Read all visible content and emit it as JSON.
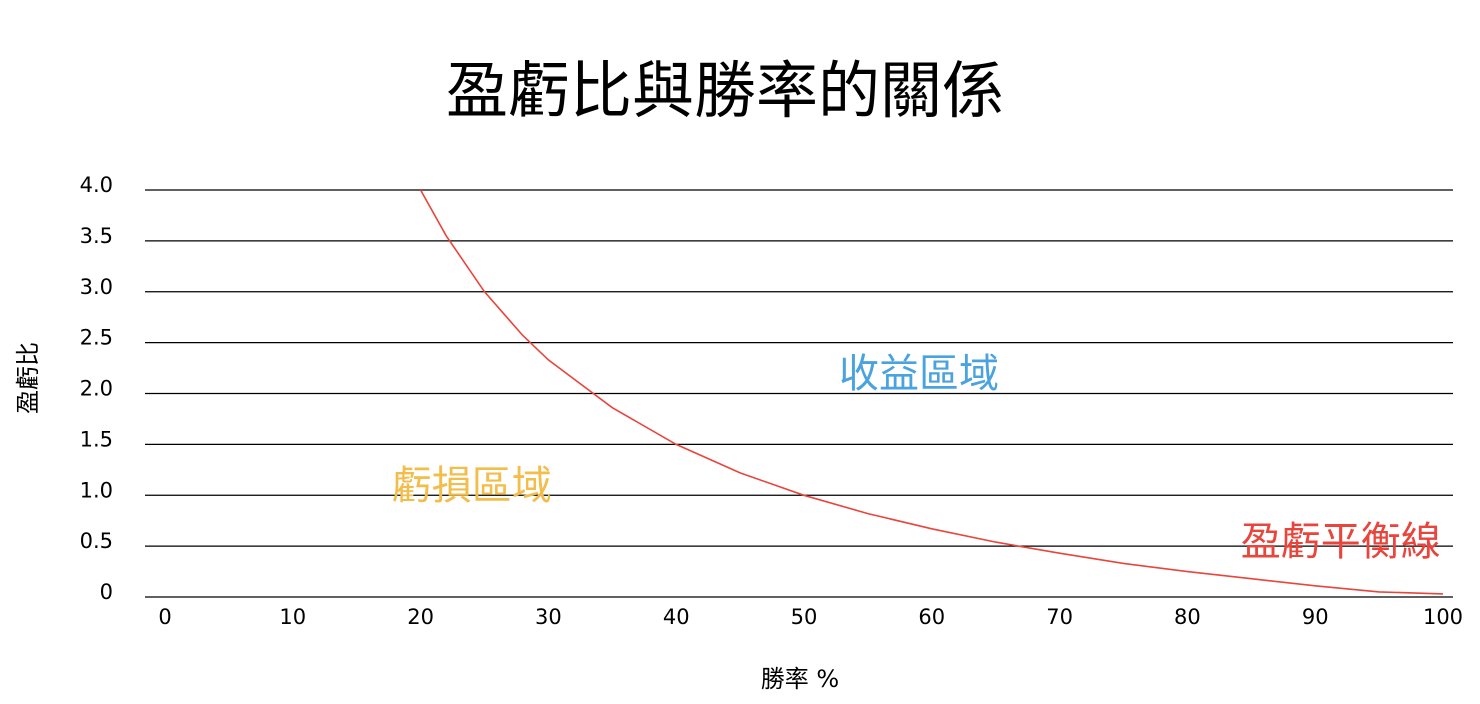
{
  "chart_data": {
    "type": "line",
    "title": "盈虧比與勝率的關係",
    "xlabel": "勝率 %",
    "ylabel": "盈虧比",
    "xlim": [
      0,
      100
    ],
    "ylim": [
      0,
      4
    ],
    "x_ticks": [
      "0",
      "10",
      "20",
      "30",
      "40",
      "50",
      "60",
      "70",
      "80",
      "90",
      "100"
    ],
    "y_ticks": [
      "0",
      "0.5",
      "1.0",
      "1.5",
      "2.0",
      "2.5",
      "3.0",
      "3.5",
      "4.0"
    ],
    "grid": true,
    "series": [
      {
        "color": "#e8453c",
        "x": [
          20,
          22,
          25,
          28,
          30,
          35,
          40,
          45,
          50,
          55,
          60,
          65,
          70,
          75,
          80,
          85,
          90,
          95,
          100
        ],
        "y": [
          4.0,
          3.55,
          3.0,
          2.57,
          2.33,
          1.86,
          1.5,
          1.22,
          1.0,
          0.82,
          0.67,
          0.54,
          0.43,
          0.33,
          0.25,
          0.18,
          0.11,
          0.05,
          0.03
        ]
      }
    ],
    "annotations": [
      {
        "text": "收益區域",
        "x": 59,
        "y": 2.2,
        "color": "#4aa3df"
      },
      {
        "text": "虧損區域",
        "x": 24,
        "y": 1.1,
        "color": "#f2bd4a"
      },
      {
        "text": "盈虧平衡線",
        "x": 92,
        "y": 0.55,
        "color": "#e8453c"
      }
    ]
  }
}
